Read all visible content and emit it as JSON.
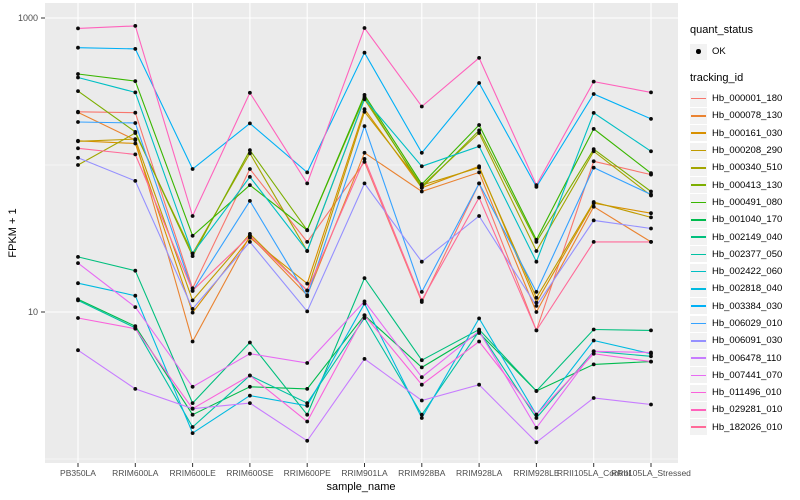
{
  "titles": {
    "ylabel": "FPKM + 1",
    "xlabel": "sample_name"
  },
  "legend": {
    "quant_status": {
      "title": "quant_status",
      "items": [
        {
          "label": "OK",
          "marker": "black-point"
        }
      ]
    },
    "tracking": {
      "title": "tracking_id"
    }
  },
  "chart_data": {
    "type": "line",
    "title": "",
    "xlabel": "sample_name",
    "ylabel": "FPKM + 1",
    "y_scale": "log10",
    "ylim": [
      0.95,
      1225
    ],
    "grid": "on",
    "legend_position": "right",
    "panel_bg": "#EBEBEB",
    "grid_color": "#FFFFFF",
    "point_color": "#0a0a0a",
    "tick_text_color": "#4d4d4d",
    "y_major_ticks": [
      {
        "label": "1000",
        "value": 1000
      },
      {
        "label": "10",
        "value": 10
      }
    ],
    "y_minor_gridlines": [
      100,
      1
    ],
    "categories": [
      "PB350LA",
      "RRIM600LA",
      "RRIM600LE",
      "RRIM600SE",
      "RRIM600PE",
      "RRIM901LA",
      "RRIM928BA",
      "RRIM928LA",
      "RRIM928LE",
      "RRII105LA_Control",
      "RRII105LA_Stressed"
    ],
    "series": [
      {
        "name": "Hb_000001_180",
        "color": "#F8766D",
        "values": [
          230,
          227,
          14.5,
          94,
          30,
          105,
          11.7,
          75,
          7.5,
          106,
          86
        ]
      },
      {
        "name": "Hb_000078_130",
        "color": "#EA8331",
        "values": [
          228,
          148,
          6.3,
          33,
          13,
          121,
          66,
          89,
          10,
          52,
          30
        ]
      },
      {
        "name": "Hb_000161_030",
        "color": "#D89000",
        "values": [
          146,
          140,
          9.9,
          32,
          15.6,
          240,
          70,
          98,
          11.6,
          55,
          47
        ]
      },
      {
        "name": "Hb_000208_290",
        "color": "#C09B00",
        "values": [
          145,
          150,
          12,
          34,
          14,
          230,
          73,
          96,
          12.5,
          56,
          44
        ]
      },
      {
        "name": "Hb_000340_510",
        "color": "#A3A500",
        "values": [
          100,
          165,
          25,
          120,
          26,
          280,
          72,
          165,
          26,
          124,
          62
        ]
      },
      {
        "name": "Hb_000413_130",
        "color": "#7CAE00",
        "values": [
          318,
          168,
          24,
          126,
          36,
          290,
          70,
          172,
          30,
          128,
          66
        ]
      },
      {
        "name": "Hb_000491_080",
        "color": "#39B600",
        "values": [
          416,
          372,
          33,
          73,
          36,
          300,
          74,
          187,
          31,
          176,
          88
        ]
      },
      {
        "name": "Hb_001040_170",
        "color": "#00BB4E",
        "values": [
          12.2,
          8.0,
          2.0,
          3.1,
          3.0,
          9.5,
          4.2,
          7.2,
          2.9,
          4.4,
          4.6
        ]
      },
      {
        "name": "Hb_002149_040",
        "color": "#00BF7D",
        "values": [
          23.7,
          19.1,
          2.4,
          6.2,
          2.0,
          17,
          4.7,
          7.6,
          2.9,
          7.6,
          7.5
        ]
      },
      {
        "name": "Hb_002377_050",
        "color": "#00C1A3",
        "values": [
          12.0,
          7.8,
          1.65,
          3.7,
          2.4,
          9.1,
          2.0,
          7.4,
          1.9,
          5.4,
          5.0
        ]
      },
      {
        "name": "Hb_002422_060",
        "color": "#00BFC4",
        "values": [
          394,
          312,
          25,
          83,
          26,
          282,
          98,
          134,
          22,
          226,
          124
        ]
      },
      {
        "name": "Hb_002818_040",
        "color": "#00BAE0",
        "values": [
          15.7,
          12.9,
          1.5,
          2.7,
          2.3,
          11.4,
          1.9,
          9.05,
          2.0,
          6.4,
          5.2
        ]
      },
      {
        "name": "Hb_003384_030",
        "color": "#00B0F6",
        "values": [
          628,
          616,
          94,
          192,
          89,
          581,
          121,
          361,
          71,
          304,
          206
        ]
      },
      {
        "name": "Hb_006029_010",
        "color": "#35A2FF",
        "values": [
          196,
          193,
          13.9,
          57,
          12.8,
          184,
          13.7,
          75,
          13.7,
          96,
          63
        ]
      },
      {
        "name": "Hb_006091_030",
        "color": "#9590FF",
        "values": [
          112,
          78,
          10.5,
          30,
          10.1,
          75,
          22,
          45,
          11,
          42,
          37
        ]
      },
      {
        "name": "Hb_006478_110",
        "color": "#C77CFF",
        "values": [
          5.5,
          3.0,
          2.2,
          2.4,
          1.33,
          4.8,
          2.5,
          3.2,
          1.3,
          2.6,
          2.35
        ]
      },
      {
        "name": "Hb_007441_070",
        "color": "#E76BF3",
        "values": [
          21.5,
          10.8,
          3.1,
          5.2,
          4.5,
          11.8,
          3.6,
          7.4,
          1.63,
          5.4,
          5.3
        ]
      },
      {
        "name": "Hb_011496_010",
        "color": "#FA62DB",
        "values": [
          9.1,
          7.7,
          2.2,
          3.7,
          1.8,
          9.5,
          3.2,
          6.3,
          2.0,
          5.2,
          4.6
        ]
      },
      {
        "name": "Hb_029281_010",
        "color": "#FF62BC",
        "values": [
          850,
          883,
          45,
          310,
          75,
          855,
          250,
          535,
          73,
          369,
          312
        ]
      },
      {
        "name": "Hb_182026_010",
        "color": "#FF6A98",
        "values": [
          130,
          118,
          14,
          33,
          14,
          110,
          12,
          60,
          7.5,
          30,
          30
        ]
      }
    ]
  }
}
